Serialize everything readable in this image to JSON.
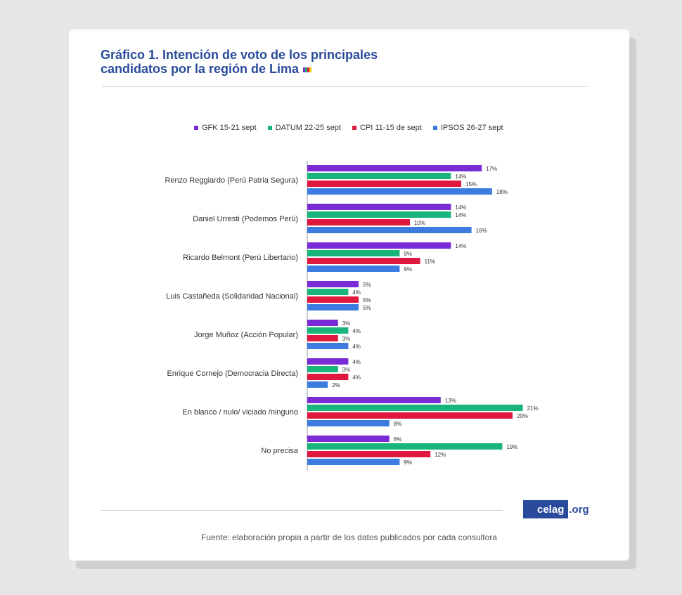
{
  "title_line1": "Gráfico 1. Intención de voto de los principales",
  "title_line2": "candidatos por la región de Lima",
  "source": "Fuente: elaboración propia a partir de los datos publicados por cada consultora",
  "logo": {
    "main": "celag",
    "suffix": ".org"
  },
  "chart_data": {
    "type": "bar",
    "orientation": "horizontal",
    "title": "Gráfico 1. Intención de voto de los principales candidatos por la región de Lima",
    "xlabel": "",
    "ylabel": "",
    "legend_position": "top",
    "grid": false,
    "xlim": [
      0,
      21
    ],
    "categories": [
      "Renzo Reggiardo (Perú Patria Segura)",
      "Daniel Urresti (Podemos Perú)",
      "Ricardo Belmont (Perú Libertario)",
      "Luis Castañeda (Solidaridad Nacional)",
      "Jorge Muñoz (Acción Popular)",
      "Enrique Cornejo (Democracia Directa)",
      "En blanco / nulo/ viciado /ninguno",
      "No precisa"
    ],
    "series": [
      {
        "name": "GFK 15-21 sept",
        "color": "#7a2bd6",
        "values": [
          17,
          14,
          14,
          5,
          3,
          4,
          13,
          8
        ],
        "labels": [
          "17%",
          "14%",
          "14%",
          "5%",
          "3%",
          "4%",
          "13%",
          "8%"
        ]
      },
      {
        "name": "DATUM 22-25 sept",
        "color": "#18b57a",
        "values": [
          14,
          14,
          9,
          4,
          4,
          3,
          21,
          19
        ],
        "labels": [
          "14%",
          "14%",
          "9%",
          "4%",
          "4%",
          "3%",
          "21%",
          "19%"
        ]
      },
      {
        "name": "CPI 11-15 de sept",
        "color": "#e0183f",
        "values": [
          15,
          10,
          11,
          5,
          3,
          4,
          20,
          12
        ],
        "labels": [
          "15%",
          "10%",
          "11%",
          "5%",
          "3%",
          "4%",
          "20%",
          "12%"
        ]
      },
      {
        "name": "IPSOS 26-27 sept",
        "color": "#3c7be0",
        "values": [
          18,
          16,
          9,
          5,
          4,
          2,
          8,
          9
        ],
        "labels": [
          "18%",
          "16%",
          "9%",
          "5%",
          "4%",
          "2%",
          "8%",
          "9%"
        ]
      }
    ]
  }
}
